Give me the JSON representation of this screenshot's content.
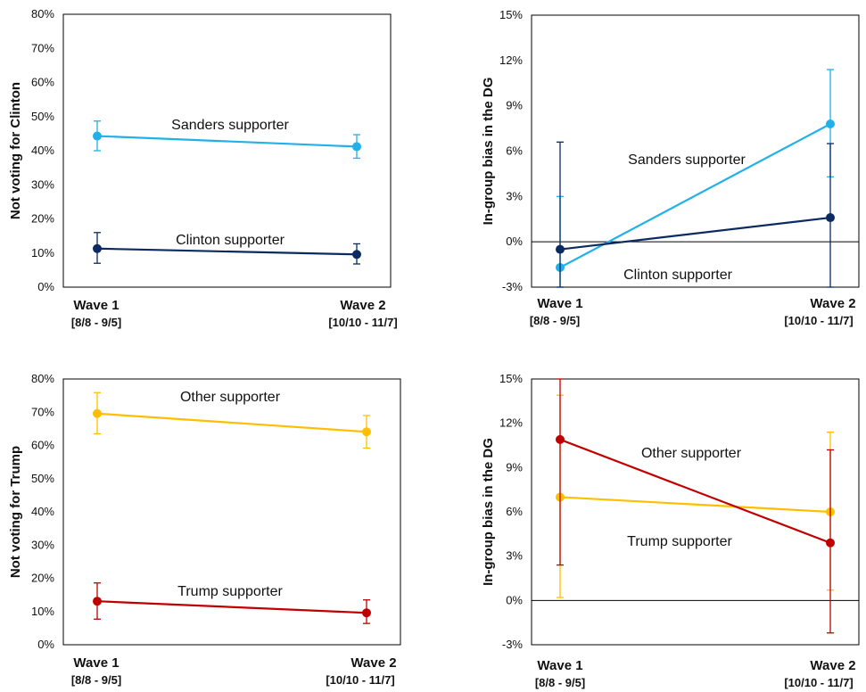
{
  "chart_data": [
    {
      "type": "line",
      "ylabel": "Not voting for Clinton",
      "yticks": [
        "0%",
        "10%",
        "20%",
        "30%",
        "40%",
        "50%",
        "60%",
        "70%",
        "80%"
      ],
      "ylim": [
        0,
        80
      ],
      "categories": [
        "Wave 1",
        "Wave 2"
      ],
      "category_sublabels": [
        "[8/8 - 9/5]",
        "[10/10 - 11/7]"
      ],
      "zero_line": false,
      "series": [
        {
          "name": "Sanders supporter",
          "color": "#21b1e8",
          "values": [
            44.3,
            41.2
          ],
          "err_low": [
            40.0,
            37.8
          ],
          "err_high": [
            48.7,
            44.7
          ]
        },
        {
          "name": "Clinton supporter",
          "color": "#0b2a62",
          "values": [
            11.3,
            9.6
          ],
          "err_low": [
            7.0,
            6.8
          ],
          "err_high": [
            16.0,
            12.7
          ]
        }
      ]
    },
    {
      "type": "line",
      "ylabel": "In-group bias in the DG",
      "yticks": [
        "-3%",
        "0%",
        "3%",
        "6%",
        "9%",
        "12%",
        "15%"
      ],
      "ylim": [
        -3,
        15
      ],
      "categories": [
        "Wave 1",
        "Wave 2"
      ],
      "category_sublabels": [
        "[8/8 - 9/5]",
        "[10/10 - 11/7]"
      ],
      "zero_line": true,
      "series": [
        {
          "name": "Sanders supporter",
          "color": "#21b1e8",
          "values": [
            -1.7,
            7.8
          ],
          "err_low": [
            -3.0,
            4.3
          ],
          "err_high": [
            3.0,
            11.4
          ]
        },
        {
          "name": "Clinton supporter",
          "color": "#0b2a62",
          "values": [
            -0.5,
            1.6
          ],
          "err_low": [
            -3.0,
            -3.0
          ],
          "err_high": [
            6.6,
            6.5
          ]
        }
      ]
    },
    {
      "type": "line",
      "ylabel": "Not voting for Trump",
      "yticks": [
        "0%",
        "10%",
        "20%",
        "30%",
        "40%",
        "50%",
        "60%",
        "70%",
        "80%"
      ],
      "ylim": [
        0,
        80
      ],
      "categories": [
        "Wave 1",
        "Wave 2"
      ],
      "category_sublabels": [
        "[8/8 - 9/5]",
        "[10/10 - 11/7]"
      ],
      "zero_line": false,
      "series": [
        {
          "name": "Other supporter",
          "color": "#ffbf00",
          "values": [
            69.6,
            64.1
          ],
          "err_low": [
            63.5,
            59.2
          ],
          "err_high": [
            75.9,
            69.0
          ]
        },
        {
          "name": "Trump supporter",
          "color": "#c00000",
          "values": [
            13.1,
            9.6
          ],
          "err_low": [
            7.7,
            6.4
          ],
          "err_high": [
            18.6,
            13.5
          ]
        }
      ]
    },
    {
      "type": "line",
      "ylabel": "In-group bias in the DG",
      "yticks": [
        "-3%",
        "0%",
        "3%",
        "6%",
        "9%",
        "12%",
        "15%"
      ],
      "ylim": [
        -3,
        15
      ],
      "categories": [
        "Wave 1",
        "Wave 2"
      ],
      "category_sublabels": [
        "[8/8 - 9/5]",
        "[10/10 - 11/7]"
      ],
      "zero_line": true,
      "series": [
        {
          "name": "Other supporter",
          "color": "#ffbf00",
          "values": [
            7.0,
            6.0
          ],
          "err_low": [
            0.2,
            0.7
          ],
          "err_high": [
            13.9,
            11.4
          ]
        },
        {
          "name": "Trump supporter",
          "color": "#c00000",
          "values": [
            10.9,
            3.9
          ],
          "err_low": [
            2.4,
            -2.2
          ],
          "err_high": [
            15.0,
            10.2
          ]
        }
      ]
    }
  ]
}
